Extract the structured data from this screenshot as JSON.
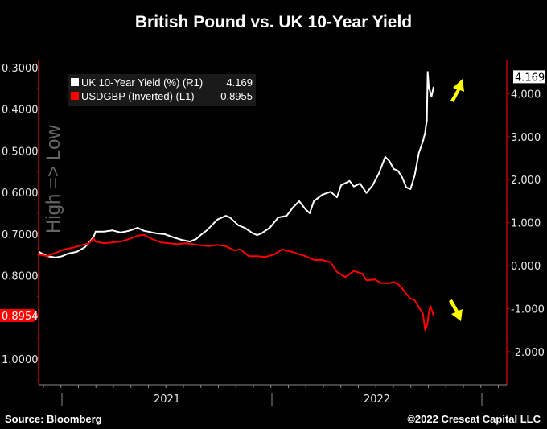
{
  "chart_data": {
    "type": "line",
    "title": "British Pound vs. UK 10-Year Yield",
    "source": "Source: Bloomberg",
    "copyright": "©2022 Crescat Capital LLC",
    "side_note": "High => Low",
    "x_ticks": [
      {
        "label": "2021",
        "value": 2021.5
      },
      {
        "label": "2022",
        "value": 2022.5
      }
    ],
    "xlim": [
      2020.89,
      3023.12
    ],
    "left_axis": {
      "ylim": [
        0.283,
        1.062
      ],
      "inverted": true,
      "ticks": [
        "0.3000",
        "0.4000",
        "0.5000",
        "0.6000",
        "0.7000",
        "0.8000",
        "1.0000"
      ],
      "tick_values": [
        0.3,
        0.4,
        0.5,
        0.6,
        0.7,
        0.8,
        1.0
      ],
      "last_label": "0.8954"
    },
    "right_axis": {
      "ylim": [
        -2.77,
        4.78
      ],
      "ticks": [
        "4.000",
        "3.000",
        "2.000",
        "1.000",
        "0.000",
        "-1.000",
        "-2.000"
      ],
      "tick_values": [
        4,
        3,
        2,
        1,
        0,
        -1,
        -2
      ],
      "last_label": "4.169"
    },
    "legend": [
      {
        "label": "UK 10-Year Yield (%) (R1)",
        "value": "4.169",
        "color": "#ffffff"
      },
      {
        "label": "USDGBP (Inverted) (L1)",
        "value": "0.8955",
        "color": "#ff0000"
      }
    ],
    "series": [
      {
        "name": "UK 10-Year Yield (%)",
        "axis": "right",
        "color": "#ffffff",
        "points": [
          [
            2020.89,
            0.32
          ],
          [
            2020.93,
            0.22
          ],
          [
            2020.97,
            0.19
          ],
          [
            2021.0,
            0.22
          ],
          [
            2021.03,
            0.28
          ],
          [
            2021.07,
            0.32
          ],
          [
            2021.11,
            0.43
          ],
          [
            2021.15,
            0.66
          ],
          [
            2021.16,
            0.79
          ],
          [
            2021.2,
            0.79
          ],
          [
            2021.24,
            0.82
          ],
          [
            2021.28,
            0.77
          ],
          [
            2021.32,
            0.81
          ],
          [
            2021.36,
            0.88
          ],
          [
            2021.39,
            0.81
          ],
          [
            2021.45,
            0.75
          ],
          [
            2021.49,
            0.73
          ],
          [
            2021.53,
            0.66
          ],
          [
            2021.57,
            0.6
          ],
          [
            2021.61,
            0.56
          ],
          [
            2021.64,
            0.62
          ],
          [
            2021.66,
            0.71
          ],
          [
            2021.69,
            0.82
          ],
          [
            2021.74,
            1.07
          ],
          [
            2021.78,
            1.16
          ],
          [
            2021.8,
            1.12
          ],
          [
            2021.84,
            0.94
          ],
          [
            2021.87,
            0.88
          ],
          [
            2021.91,
            0.75
          ],
          [
            2021.93,
            0.71
          ],
          [
            2021.95,
            0.75
          ],
          [
            2021.99,
            0.88
          ],
          [
            2022.03,
            1.12
          ],
          [
            2022.07,
            1.16
          ],
          [
            2022.1,
            1.35
          ],
          [
            2022.13,
            1.5
          ],
          [
            2022.16,
            1.31
          ],
          [
            2022.18,
            1.22
          ],
          [
            2022.2,
            1.5
          ],
          [
            2022.24,
            1.65
          ],
          [
            2022.28,
            1.72
          ],
          [
            2022.31,
            1.59
          ],
          [
            2022.33,
            1.87
          ],
          [
            2022.37,
            1.97
          ],
          [
            2022.39,
            1.84
          ],
          [
            2022.42,
            1.91
          ],
          [
            2022.45,
            1.69
          ],
          [
            2022.48,
            1.87
          ],
          [
            2022.51,
            2.15
          ],
          [
            2022.54,
            2.53
          ],
          [
            2022.56,
            2.43
          ],
          [
            2022.58,
            2.25
          ],
          [
            2022.6,
            2.21
          ],
          [
            2022.62,
            2.06
          ],
          [
            2022.64,
            1.82
          ],
          [
            2022.66,
            1.78
          ],
          [
            2022.68,
            2.1
          ],
          [
            2022.7,
            2.62
          ],
          [
            2022.72,
            2.9
          ],
          [
            2022.73,
            3.09
          ],
          [
            2022.733,
            3.22
          ],
          [
            2022.738,
            3.37
          ],
          [
            2022.742,
            4.51
          ],
          [
            2022.748,
            4.12
          ],
          [
            2022.752,
            4.08
          ],
          [
            2022.76,
            3.93
          ],
          [
            2022.77,
            4.16
          ]
        ]
      },
      {
        "name": "USDGBP (Inverted)",
        "axis": "left",
        "color": "#ff0000",
        "points": [
          [
            2020.89,
            0.749
          ],
          [
            2020.93,
            0.753
          ],
          [
            2020.97,
            0.745
          ],
          [
            2021.01,
            0.737
          ],
          [
            2021.05,
            0.733
          ],
          [
            2021.09,
            0.727
          ],
          [
            2021.13,
            0.722
          ],
          [
            2021.15,
            0.71
          ],
          [
            2021.16,
            0.718
          ],
          [
            2021.2,
            0.722
          ],
          [
            2021.24,
            0.72
          ],
          [
            2021.28,
            0.718
          ],
          [
            2021.32,
            0.712
          ],
          [
            2021.36,
            0.704
          ],
          [
            2021.39,
            0.702
          ],
          [
            2021.43,
            0.712
          ],
          [
            2021.47,
            0.72
          ],
          [
            2021.51,
            0.722
          ],
          [
            2021.55,
            0.724
          ],
          [
            2021.59,
            0.722
          ],
          [
            2021.62,
            0.724
          ],
          [
            2021.66,
            0.727
          ],
          [
            2021.7,
            0.729
          ],
          [
            2021.74,
            0.726
          ],
          [
            2021.78,
            0.729
          ],
          [
            2021.82,
            0.739
          ],
          [
            2021.85,
            0.737
          ],
          [
            2021.89,
            0.753
          ],
          [
            2021.93,
            0.753
          ],
          [
            2021.97,
            0.755
          ],
          [
            2022.01,
            0.749
          ],
          [
            2022.05,
            0.737
          ],
          [
            2022.08,
            0.741
          ],
          [
            2022.1,
            0.743
          ],
          [
            2022.12,
            0.747
          ],
          [
            2022.16,
            0.753
          ],
          [
            2022.2,
            0.762
          ],
          [
            2022.24,
            0.762
          ],
          [
            2022.28,
            0.768
          ],
          [
            2022.31,
            0.791
          ],
          [
            2022.35,
            0.803
          ],
          [
            2022.39,
            0.789
          ],
          [
            2022.43,
            0.795
          ],
          [
            2022.45,
            0.811
          ],
          [
            2022.49,
            0.809
          ],
          [
            2022.52,
            0.818
          ],
          [
            2022.56,
            0.818
          ],
          [
            2022.58,
            0.815
          ],
          [
            2022.6,
            0.82
          ],
          [
            2022.62,
            0.83
          ],
          [
            2022.64,
            0.844
          ],
          [
            2022.66,
            0.855
          ],
          [
            2022.68,
            0.859
          ],
          [
            2022.7,
            0.876
          ],
          [
            2022.72,
            0.892
          ],
          [
            2022.73,
            0.931
          ],
          [
            2022.74,
            0.919
          ],
          [
            2022.748,
            0.888
          ],
          [
            2022.755,
            0.873
          ],
          [
            2022.77,
            0.896
          ]
        ]
      }
    ]
  }
}
